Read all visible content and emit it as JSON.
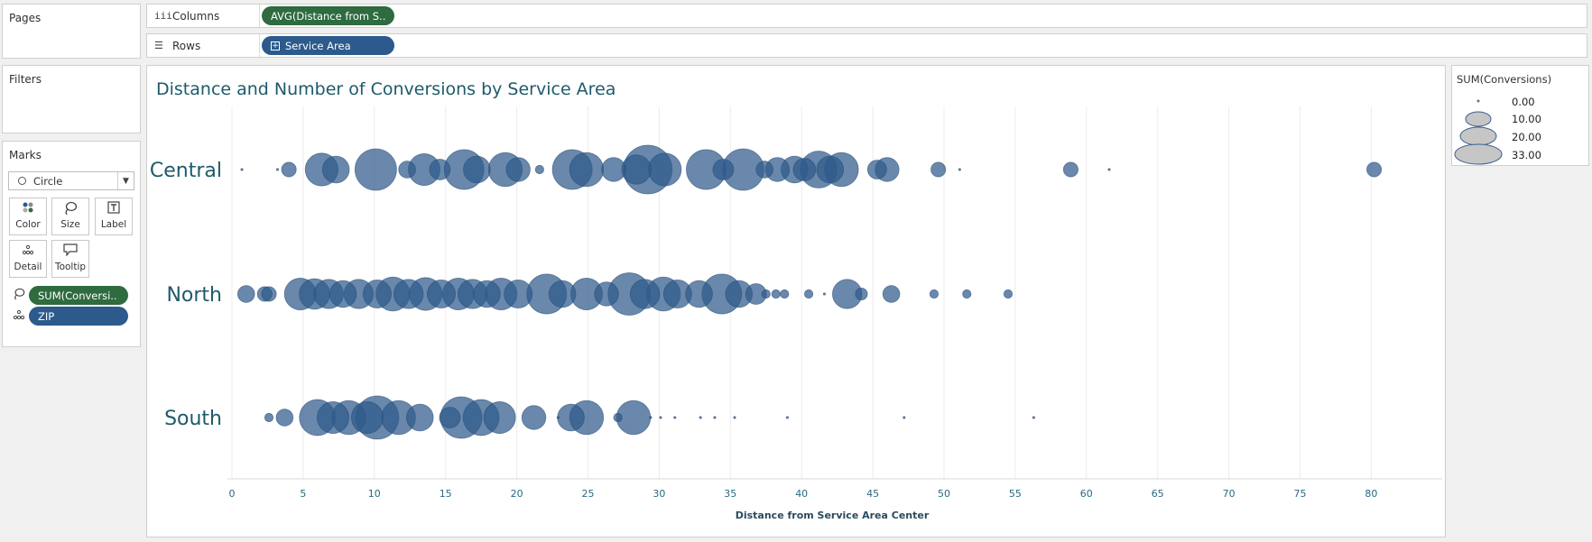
{
  "panels": {
    "pages_label": "Pages",
    "filters_label": "Filters",
    "marks_label": "Marks"
  },
  "shelves": {
    "columns": {
      "label": "Columns",
      "pill": "AVG(Distance from S.."
    },
    "rows": {
      "label": "Rows",
      "pill": "Service Area"
    }
  },
  "marks": {
    "type": "Circle",
    "buttons": [
      {
        "label": "Color",
        "icon": "color-dots-icon"
      },
      {
        "label": "Size",
        "icon": "size-lasso-icon"
      },
      {
        "label": "Label",
        "icon": "label-t-icon"
      },
      {
        "label": "Detail",
        "icon": "detail-dots-icon"
      },
      {
        "label": "Tooltip",
        "icon": "tooltip-bubble-icon"
      }
    ],
    "fields": [
      {
        "name": "SUM(Conversi..",
        "icon": "size-lasso-icon",
        "color": "#2e6b3f"
      },
      {
        "name": "ZIP",
        "icon": "detail-dots-icon",
        "color": "#2c5a8c"
      }
    ]
  },
  "legend": {
    "title": "SUM(Conversions)",
    "items": [
      "0.00",
      "10.00",
      "20.00",
      "33.00"
    ]
  },
  "colors": {
    "mark": "#2f5a8a",
    "label": "#1e5a6a",
    "green_pill": "#2e6b3f",
    "blue_pill": "#2c5a8c"
  },
  "chart_data": {
    "type": "scatter",
    "title": "Distance and Number of Conversions by Service Area",
    "xlabel": "Distance from Service Area Center",
    "xlim": [
      0,
      85
    ],
    "xticks": [
      0,
      5,
      10,
      15,
      20,
      25,
      30,
      35,
      40,
      45,
      50,
      55,
      60,
      65,
      70,
      75,
      80
    ],
    "categories": [
      "Central",
      "North",
      "South"
    ],
    "size_field": "SUM(Conversions)",
    "grid": "vertical",
    "series": [
      {
        "category": "Central",
        "points": [
          [
            0.7,
            0
          ],
          [
            3.2,
            0
          ],
          [
            4,
            3
          ],
          [
            6.3,
            15
          ],
          [
            7.3,
            10
          ],
          [
            10.1,
            24
          ],
          [
            12.3,
            4
          ],
          [
            13.5,
            14
          ],
          [
            14.6,
            6
          ],
          [
            16.3,
            22
          ],
          [
            17.2,
            10
          ],
          [
            19.2,
            16
          ],
          [
            20.1,
            8
          ],
          [
            21.6,
            1
          ],
          [
            23.9,
            22
          ],
          [
            24.9,
            16
          ],
          [
            26.8,
            8
          ],
          [
            28.4,
            12
          ],
          [
            29.2,
            33
          ],
          [
            30.4,
            15
          ],
          [
            33.3,
            22
          ],
          [
            34.5,
            6
          ],
          [
            35.9,
            24
          ],
          [
            37.4,
            4
          ],
          [
            38.3,
            8
          ],
          [
            39.5,
            10
          ],
          [
            40.2,
            7
          ],
          [
            41.2,
            19
          ],
          [
            42,
            10
          ],
          [
            42.8,
            16
          ],
          [
            45.3,
            5
          ],
          [
            46,
            8
          ],
          [
            49.6,
            3
          ],
          [
            51.1,
            0
          ],
          [
            58.9,
            3
          ],
          [
            61.6,
            0
          ],
          [
            80.2,
            3
          ]
        ]
      },
      {
        "category": "North",
        "points": [
          [
            1,
            4
          ],
          [
            2.3,
            3
          ],
          [
            2.6,
            3
          ],
          [
            4.8,
            14
          ],
          [
            5.8,
            13
          ],
          [
            6.8,
            12
          ],
          [
            7.8,
            10
          ],
          [
            8.9,
            12
          ],
          [
            10.2,
            11
          ],
          [
            11.3,
            16
          ],
          [
            12.4,
            12
          ],
          [
            13.6,
            15
          ],
          [
            14.7,
            11
          ],
          [
            15.9,
            14
          ],
          [
            16.9,
            12
          ],
          [
            17.9,
            10
          ],
          [
            18.9,
            14
          ],
          [
            20.1,
            11
          ],
          [
            22.1,
            22
          ],
          [
            23.2,
            10
          ],
          [
            24.9,
            14
          ],
          [
            26.3,
            8
          ],
          [
            27.9,
            25
          ],
          [
            29,
            12
          ],
          [
            30.3,
            16
          ],
          [
            31.3,
            11
          ],
          [
            32.8,
            10
          ],
          [
            34.4,
            22
          ],
          [
            35.6,
            10
          ],
          [
            36.8,
            6
          ],
          [
            37.5,
            1
          ],
          [
            38.2,
            1
          ],
          [
            38.8,
            1
          ],
          [
            40.5,
            1
          ],
          [
            41.6,
            0
          ],
          [
            43.2,
            12
          ],
          [
            44.2,
            2
          ],
          [
            46.3,
            4
          ],
          [
            49.3,
            1
          ],
          [
            51.6,
            1
          ],
          [
            54.5,
            1
          ]
        ]
      },
      {
        "category": "South",
        "points": [
          [
            2.6,
            1
          ],
          [
            3.7,
            4
          ],
          [
            6,
            18
          ],
          [
            7.1,
            14
          ],
          [
            8.2,
            16
          ],
          [
            9.5,
            14
          ],
          [
            10.2,
            26
          ],
          [
            11.7,
            16
          ],
          [
            13.2,
            10
          ],
          [
            15.3,
            6
          ],
          [
            16.1,
            24
          ],
          [
            17.5,
            18
          ],
          [
            18.8,
            14
          ],
          [
            21.2,
            8
          ],
          [
            22.9,
            0
          ],
          [
            23.8,
            10
          ],
          [
            24.9,
            16
          ],
          [
            27.1,
            1
          ],
          [
            28.2,
            16
          ],
          [
            29.4,
            0
          ],
          [
            30.1,
            0
          ],
          [
            31.1,
            0
          ],
          [
            32.9,
            0
          ],
          [
            33.9,
            0
          ],
          [
            35.3,
            0
          ],
          [
            39,
            0
          ],
          [
            47.2,
            0
          ],
          [
            56.3,
            0
          ]
        ]
      }
    ]
  }
}
